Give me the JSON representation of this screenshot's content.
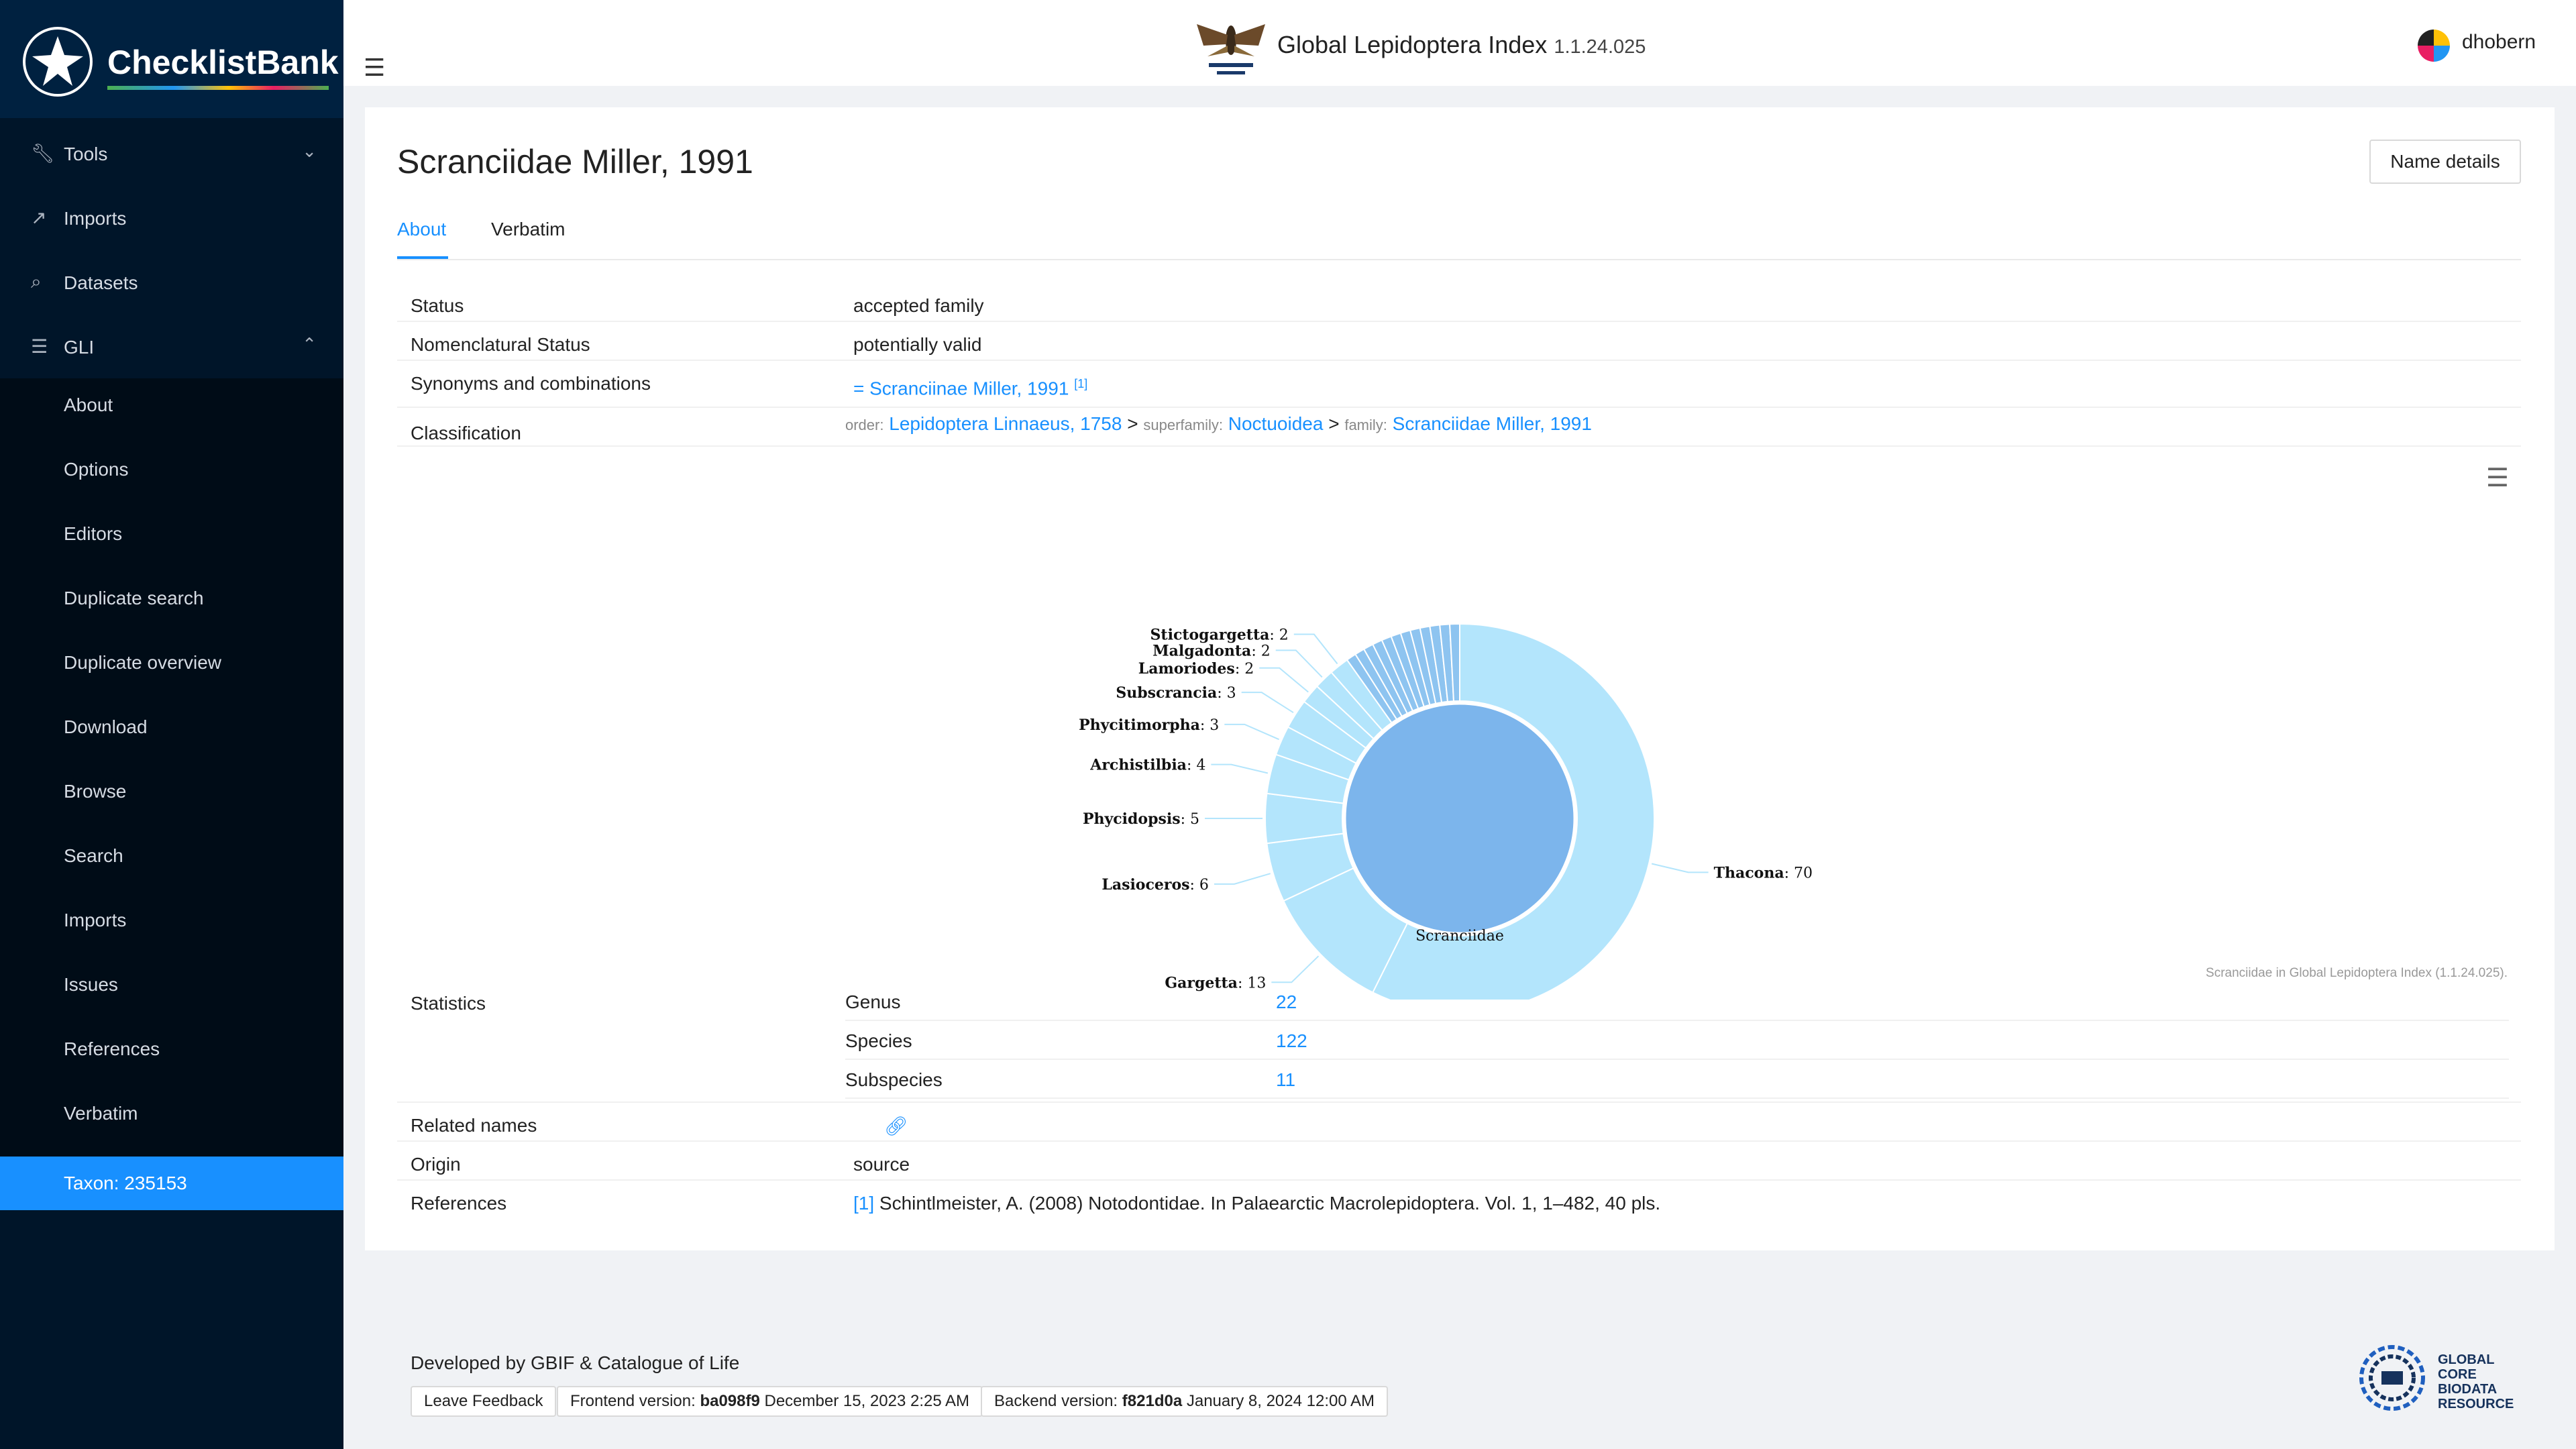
{
  "sidebar": {
    "brand": "ChecklistBank",
    "items": [
      {
        "label": "Tools",
        "icon": "wrench-icon"
      },
      {
        "label": "Imports",
        "icon": "rocket-icon"
      },
      {
        "label": "Datasets",
        "icon": "search-icon"
      },
      {
        "label": "GLI",
        "icon": "list-icon"
      }
    ],
    "subitems": [
      "About",
      "Options",
      "Editors",
      "Duplicate search",
      "Duplicate overview",
      "Download",
      "Browse",
      "Search",
      "Imports",
      "Issues",
      "References",
      "Verbatim",
      "Taxon: 235153"
    ]
  },
  "header": {
    "title": "Global Lepidoptera Index",
    "version": "1.1.24.025",
    "user": "dhobern"
  },
  "taxon": {
    "title": "Scranciidae Miller, 1991",
    "name_details_button": "Name details",
    "tabs": [
      "About",
      "Verbatim"
    ],
    "rows": {
      "status_label": "Status",
      "status_value": "accepted family",
      "nom_label": "Nomenclatural Status",
      "nom_value": "potentially valid",
      "syn_label": "Synonyms and combinations",
      "syn_value": "= Scranciinae Miller, 1991",
      "syn_ref": "[1]",
      "class_label": "Classification",
      "class_order_rank": "order:",
      "class_order": "Lepidoptera Linnaeus, 1758",
      "class_super_rank": "superfamily:",
      "class_super": "Noctuoidea",
      "class_family_rank": "family:",
      "class_family": "Scranciidae Miller, 1991",
      "sep": ">"
    },
    "statistics": {
      "label": "Statistics",
      "items": [
        {
          "rank": "Genus",
          "count": "22"
        },
        {
          "rank": "Species",
          "count": "122"
        },
        {
          "rank": "Subspecies",
          "count": "11"
        }
      ]
    },
    "related_label": "Related names",
    "origin_label": "Origin",
    "origin_value": "source",
    "references_label": "References",
    "references_ref": "[1]",
    "references_value": "Schintlmeister, A. (2008) Notodontidae. In Palaearctic Macrolepidoptera. Vol. 1, 1–482, 40 pls."
  },
  "chart_data": {
    "type": "pie",
    "center_label": "Scranciidae",
    "credits": "Scranciidae in Global Lepidoptera Index (1.1.24.025).",
    "inner_value": 122,
    "slices": [
      {
        "label": "Thacona",
        "value": 70
      },
      {
        "label": "Gargetta",
        "value": 13
      },
      {
        "label": "Lasioceros",
        "value": 6
      },
      {
        "label": "Phycidopsis",
        "value": 5
      },
      {
        "label": "Archistilbia",
        "value": 4
      },
      {
        "label": "Phycitimorpha",
        "value": 3
      },
      {
        "label": "Subscrancia",
        "value": 3
      },
      {
        "label": "Lamoriodes",
        "value": 2
      },
      {
        "label": "Malgadonta",
        "value": 2
      },
      {
        "label": "Stictogargetta",
        "value": 2
      },
      {
        "label": "",
        "value": 1
      },
      {
        "label": "",
        "value": 1
      },
      {
        "label": "",
        "value": 1
      },
      {
        "label": "",
        "value": 1
      },
      {
        "label": "",
        "value": 1
      },
      {
        "label": "",
        "value": 1
      },
      {
        "label": "",
        "value": 1
      },
      {
        "label": "",
        "value": 1
      },
      {
        "label": "",
        "value": 1
      },
      {
        "label": "",
        "value": 1
      },
      {
        "label": "",
        "value": 1
      },
      {
        "label": "",
        "value": 1
      }
    ],
    "colors": {
      "outer": "#b3e5fc",
      "inner": "#7cb5ec",
      "stroke": "#ffffff"
    }
  },
  "footer": {
    "developed": "Developed by GBIF & Catalogue of Life",
    "feedback": "Leave Feedback",
    "frontend_label": "Frontend version:",
    "frontend_hash": "ba098f9",
    "frontend_date": "December 15, 2023 2:25 AM",
    "backend_label": "Backend version:",
    "backend_hash": "f821d0a",
    "backend_date": "January 8, 2024 12:00 AM",
    "gbc_lines": [
      "GLOBAL",
      "CORE",
      "BIODATA",
      "RESOURCE"
    ]
  }
}
